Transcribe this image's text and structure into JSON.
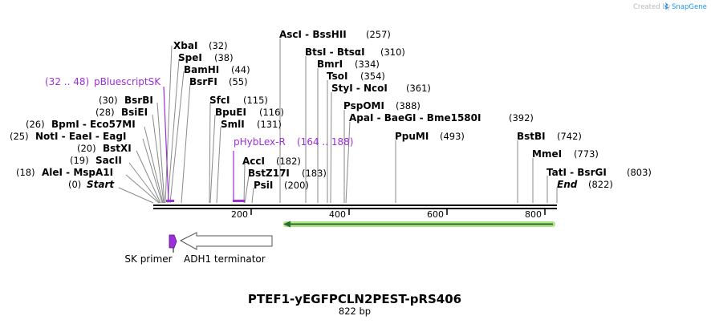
{
  "credit": "Created by",
  "brand": "SnapGene",
  "title": "PTEF1-yEGFPCLN2PEST-pRS406",
  "length_label": "822 bp",
  "ruler": [
    "200",
    "400",
    "600",
    "800"
  ],
  "sites": [
    {
      "name": "Start",
      "pos": "(0)"
    },
    {
      "name": "AleI  -  MspA1I",
      "pos": "(18)"
    },
    {
      "name": "SacII",
      "pos": "(19)"
    },
    {
      "name": "BstXI",
      "pos": "(20)"
    },
    {
      "name": "NotI  -  EaeI  -  EagI",
      "pos": "(25)"
    },
    {
      "name": "BpmI  -  Eco57MI",
      "pos": "(26)"
    },
    {
      "name": "BsiEI",
      "pos": "(28)"
    },
    {
      "name": "BsrBI",
      "pos": "(30)"
    },
    {
      "name": "XbaI",
      "pos": "(32)"
    },
    {
      "name": "SpeI",
      "pos": "(38)"
    },
    {
      "name": "BamHI",
      "pos": "(44)"
    },
    {
      "name": "BsrFI",
      "pos": "(55)"
    },
    {
      "name": "SfcI",
      "pos": "(115)"
    },
    {
      "name": "BpuEI",
      "pos": "(116)"
    },
    {
      "name": "SmlI",
      "pos": "(131)"
    },
    {
      "name": "AccI",
      "pos": "(182)"
    },
    {
      "name": "BstZ17I",
      "pos": "(183)"
    },
    {
      "name": "PsiI",
      "pos": "(200)"
    },
    {
      "name": "AscI  -  BssHII",
      "pos": "(257)"
    },
    {
      "name": "BtsI  -  BtsαI",
      "pos": "(310)"
    },
    {
      "name": "BmrI",
      "pos": "(334)"
    },
    {
      "name": "TsoI",
      "pos": "(354)"
    },
    {
      "name": "StyI  -  NcoI",
      "pos": "(361)"
    },
    {
      "name": "PspOMI",
      "pos": "(388)"
    },
    {
      "name": "ApaI  -  BaeGI  -  Bme1580I",
      "pos": "(392)"
    },
    {
      "name": "PpuMI",
      "pos": "(493)"
    },
    {
      "name": "BstBI",
      "pos": "(742)"
    },
    {
      "name": "MmeI",
      "pos": "(773)"
    },
    {
      "name": "TatI  -  BsrGI",
      "pos": "(803)"
    },
    {
      "name": "End",
      "pos": "(822)"
    }
  ],
  "primers": [
    {
      "name": "pBluescriptSK",
      "range": "(32 .. 48)"
    },
    {
      "name": "pHybLex-R",
      "range": "(164 .. 188)"
    }
  ],
  "features": {
    "sk_primer": "SK primer",
    "adh1_terminator": "ADH1 terminator"
  },
  "colors": {
    "primer": "#9b30d9",
    "green_feature": "#b5e48c",
    "green_arrow": "#2a6f2a",
    "label_line": "#8a8a8a",
    "credit": "#b9b9b9",
    "brand": "#2196f3"
  }
}
